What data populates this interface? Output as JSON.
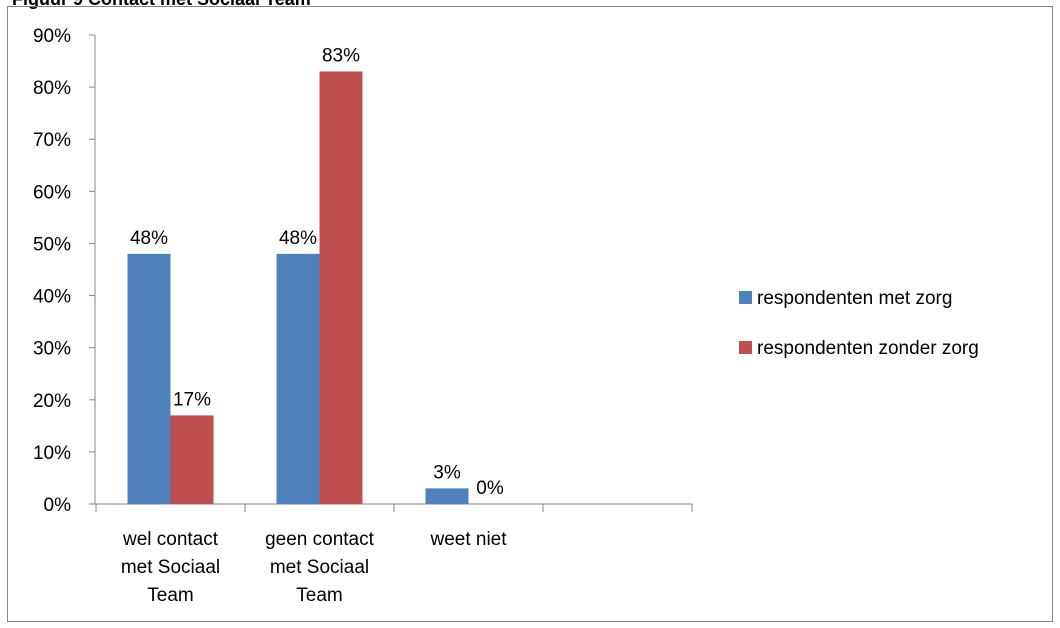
{
  "figure_title": "Figuur 9 Contact met Sociaal Team",
  "chart_data": {
    "type": "bar",
    "title": "",
    "xlabel": "",
    "ylabel": "",
    "ylim": [
      0,
      0.9
    ],
    "y_ticks": [
      "0%",
      "10%",
      "20%",
      "30%",
      "40%",
      "50%",
      "60%",
      "70%",
      "80%",
      "90%"
    ],
    "categories": [
      [
        "wel contact",
        "met Sociaal",
        "Team"
      ],
      [
        "geen contact",
        "met Sociaal",
        "Team"
      ],
      [
        "weet niet"
      ]
    ],
    "series": [
      {
        "name": "respondenten met zorg",
        "color": "#4F81BD",
        "values": [
          0.48,
          0.48,
          0.03
        ],
        "labels": [
          "48%",
          "48%",
          "3%"
        ]
      },
      {
        "name": "respondenten zonder zorg",
        "color": "#C0504D",
        "values": [
          0.17,
          0.83,
          0.0
        ],
        "labels": [
          "17%",
          "83%",
          "0%"
        ]
      }
    ],
    "grid": false,
    "legend_position": "right"
  }
}
